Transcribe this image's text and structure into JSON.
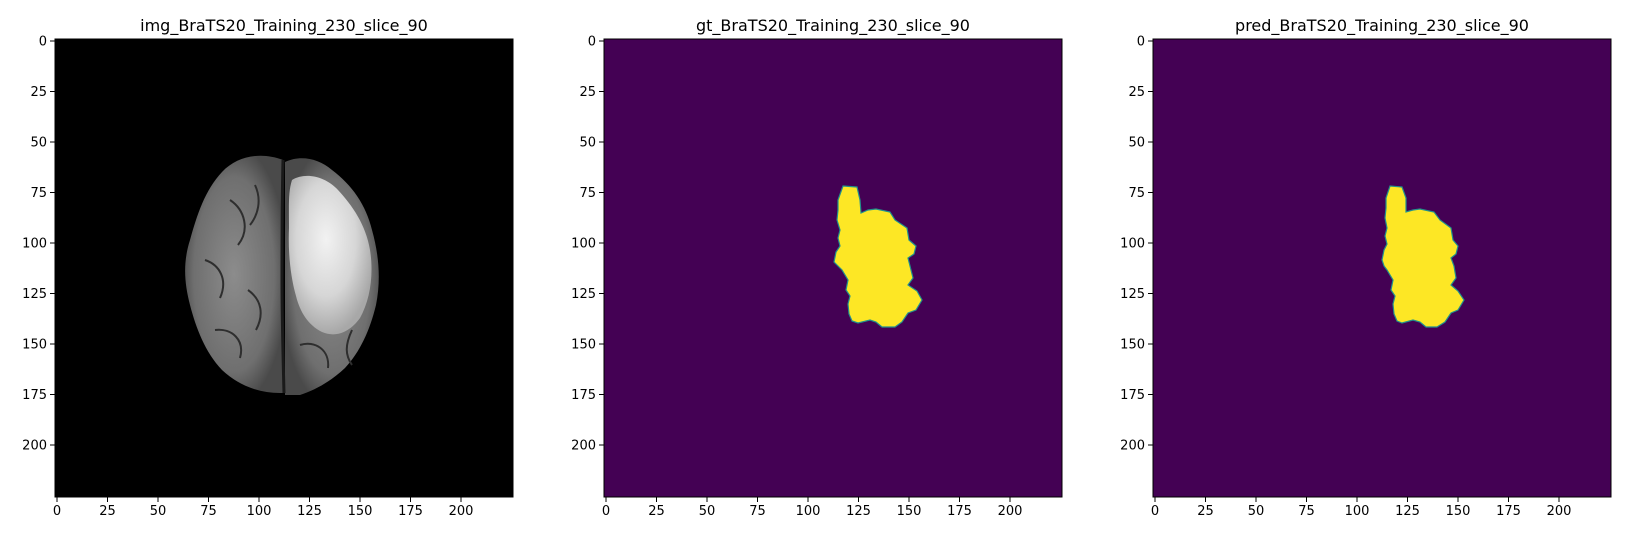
{
  "panels": [
    {
      "id": "img",
      "title": "img_BraTS20_Training_230_slice_90",
      "kind": "mri"
    },
    {
      "id": "gt",
      "title": "gt_BraTS20_Training_230_slice_90",
      "kind": "mask"
    },
    {
      "id": "pred",
      "title": "pred_BraTS20_Training_230_slice_90",
      "kind": "mask"
    }
  ],
  "axes": {
    "x_ticks": [
      "0",
      "25",
      "50",
      "75",
      "100",
      "125",
      "150",
      "175",
      "200"
    ],
    "y_ticks": [
      "0",
      "25",
      "50",
      "75",
      "100",
      "125",
      "150",
      "175",
      "200"
    ],
    "xlim": [
      0,
      224
    ],
    "ylim": [
      224,
      0
    ]
  },
  "colors": {
    "mask_background": "#440154",
    "mask_foreground": "#fde725",
    "mask_edge": "#21918c",
    "mri_background": "#000000"
  }
}
